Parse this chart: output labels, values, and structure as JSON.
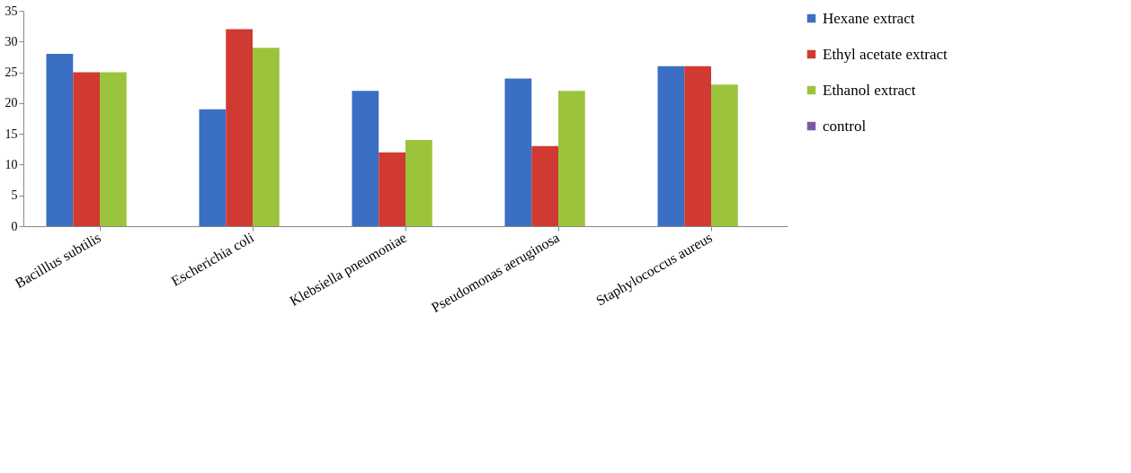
{
  "chart_data": {
    "type": "bar",
    "categories": [
      "Bacilllus subtilis",
      "Escherichia coli",
      "Klebsiella pneumoniae",
      "Pseudomonas aeruginosa",
      "Staphylococcus aureus"
    ],
    "series": [
      {
        "name": "Hexane extract",
        "color": "#3a6fc4",
        "values": [
          28,
          19,
          22,
          24,
          26
        ]
      },
      {
        "name": "Ethyl acetate extract",
        "color": "#d03a33",
        "values": [
          25,
          32,
          12,
          13,
          26
        ]
      },
      {
        "name": "Ethanol extract",
        "color": "#9bc43c",
        "values": [
          25,
          29,
          14,
          22,
          23
        ]
      },
      {
        "name": "control",
        "color": "#7a5aa6",
        "values": [
          0,
          0,
          0,
          0,
          0
        ]
      }
    ],
    "ylim": [
      0,
      35
    ],
    "yticks": [
      0,
      5,
      10,
      15,
      20,
      25,
      30,
      35
    ],
    "grid": false,
    "legend": "right"
  }
}
